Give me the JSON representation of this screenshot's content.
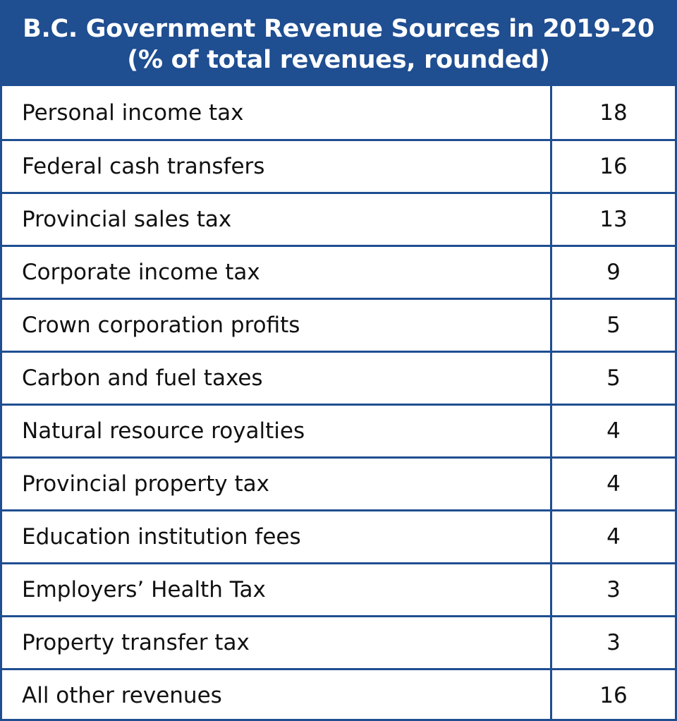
{
  "chart_data": {
    "type": "table",
    "title_lines": [
      "B.C. Government Revenue Sources in 2019-20",
      "(% of total revenues, rounded)"
    ],
    "rows": [
      {
        "label": "Personal income tax",
        "value": "18"
      },
      {
        "label": "Federal cash transfers",
        "value": "16"
      },
      {
        "label": "Provincial sales tax",
        "value": "13"
      },
      {
        "label": "Corporate income tax",
        "value": "9"
      },
      {
        "label": "Crown corporation profits",
        "value": "5"
      },
      {
        "label": "Carbon and fuel taxes",
        "value": "5"
      },
      {
        "label": "Natural resource royalties",
        "value": "4"
      },
      {
        "label": "Provincial property tax",
        "value": "4"
      },
      {
        "label": "Education institution fees",
        "value": "4"
      },
      {
        "label": "Employers’ Health Tax",
        "value": "3"
      },
      {
        "label": "Property transfer tax",
        "value": "3"
      },
      {
        "label": "All other revenues",
        "value": "16"
      }
    ]
  },
  "colors": {
    "header_background": "#1f4e91",
    "header_text": "#ffffff",
    "border": "#1f4e91",
    "cell_text": "#111111"
  }
}
